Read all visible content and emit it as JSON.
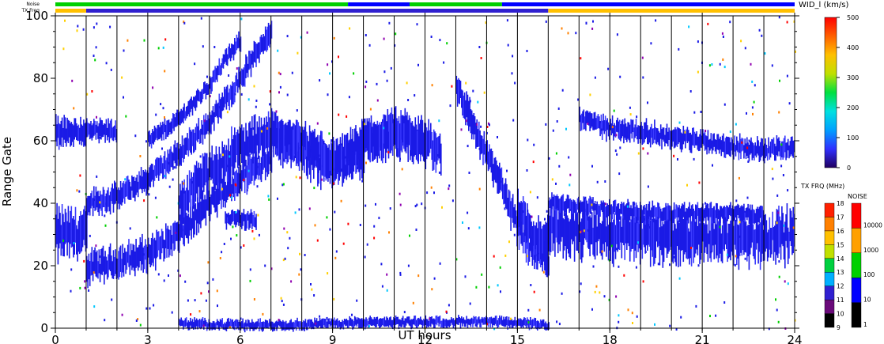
{
  "chart_data": {
    "type": "heatmap",
    "xlabel": "UT hours",
    "ylabel": "Range Gate",
    "xlim": [
      0,
      24
    ],
    "ylim": [
      0,
      100
    ],
    "x_ticks": [
      "0",
      "3",
      "6",
      "9",
      "12",
      "15",
      "18",
      "21",
      "24"
    ],
    "y_ticks": [
      "0",
      "20",
      "40",
      "60",
      "80",
      "100"
    ],
    "x_tick_values": [
      0,
      3,
      6,
      9,
      12,
      15,
      18,
      21,
      24
    ],
    "y_tick_values": [
      0,
      20,
      40,
      60,
      80,
      100
    ],
    "hour_lines": [
      1,
      2,
      3,
      4,
      5,
      6,
      7,
      8,
      9,
      10,
      11,
      12,
      13,
      14,
      15,
      16,
      17,
      18,
      19,
      20,
      21,
      22,
      23
    ],
    "top_strips": [
      {
        "label": "Noise",
        "segments": [
          {
            "from": 0,
            "to": 9.5,
            "level": "100"
          },
          {
            "from": 9.5,
            "to": 11.5,
            "level": "10"
          },
          {
            "from": 11.5,
            "to": 14.5,
            "level": "100"
          },
          {
            "from": 14.5,
            "to": 24,
            "level": "10"
          }
        ]
      },
      {
        "label": "TX Freq",
        "segments": [
          {
            "from": 0,
            "to": 1,
            "mhz": 15
          },
          {
            "from": 1,
            "to": 16,
            "mhz": 11
          },
          {
            "from": 16,
            "to": 24,
            "mhz": 15
          }
        ]
      }
    ],
    "echo_bands": [
      {
        "points": [
          [
            0,
            30
          ],
          [
            1,
            30
          ]
        ],
        "width": 14
      },
      {
        "points": [
          [
            0,
            63
          ],
          [
            1,
            63
          ]
        ],
        "width": 8
      },
      {
        "points": [
          [
            1,
            63
          ],
          [
            2,
            63
          ]
        ],
        "width": 6
      },
      {
        "points": [
          [
            1,
            19
          ],
          [
            2,
            21
          ],
          [
            3,
            24
          ],
          [
            4,
            30
          ],
          [
            5,
            40
          ],
          [
            6,
            48
          ],
          [
            7,
            55
          ]
        ],
        "width": 9
      },
      {
        "points": [
          [
            1,
            40
          ],
          [
            2,
            42
          ],
          [
            3,
            48
          ],
          [
            4,
            56
          ],
          [
            5,
            66
          ],
          [
            6,
            80
          ],
          [
            7,
            96
          ]
        ],
        "width": 7
      },
      {
        "points": [
          [
            3,
            60
          ],
          [
            4,
            67
          ],
          [
            5,
            78
          ],
          [
            5.5,
            86
          ],
          [
            6,
            92
          ]
        ],
        "width": 5
      },
      {
        "points": [
          [
            4,
            40
          ],
          [
            5,
            50
          ],
          [
            6,
            58
          ],
          [
            7,
            62
          ],
          [
            8,
            56
          ],
          [
            9,
            52
          ],
          [
            10,
            56
          ]
        ],
        "width": 12
      },
      {
        "points": [
          [
            7,
            62
          ],
          [
            8,
            60
          ],
          [
            9,
            54
          ],
          [
            10,
            60
          ],
          [
            11,
            62
          ],
          [
            12,
            58
          ]
        ],
        "width": 10
      },
      {
        "points": [
          [
            10,
            60
          ],
          [
            11,
            62
          ],
          [
            12,
            60
          ],
          [
            12.5,
            56
          ]
        ],
        "width": 12
      },
      {
        "points": [
          [
            13,
            78
          ],
          [
            13.5,
            66
          ],
          [
            14,
            55
          ],
          [
            14.5,
            45
          ],
          [
            15,
            32
          ],
          [
            15.5,
            24
          ],
          [
            16,
            22
          ]
        ],
        "width": 9
      },
      {
        "points": [
          [
            15,
            38
          ],
          [
            15.5,
            30
          ],
          [
            16,
            28
          ]
        ],
        "width": 12
      },
      {
        "points": [
          [
            16,
            33
          ],
          [
            17,
            31
          ],
          [
            18,
            30
          ],
          [
            19,
            30
          ],
          [
            20,
            29
          ],
          [
            21,
            29
          ],
          [
            22,
            29
          ],
          [
            23,
            29
          ],
          [
            24,
            30
          ]
        ],
        "width": 14
      },
      {
        "points": [
          [
            16,
            40
          ],
          [
            17,
            39
          ],
          [
            18,
            38
          ],
          [
            19,
            37
          ],
          [
            20,
            37
          ],
          [
            21,
            37
          ],
          [
            22,
            37
          ],
          [
            23,
            36
          ]
        ],
        "width": 5
      },
      {
        "points": [
          [
            17,
            67
          ],
          [
            18,
            64
          ],
          [
            19,
            63
          ],
          [
            20,
            61
          ],
          [
            21,
            60
          ],
          [
            22,
            58
          ],
          [
            23,
            57
          ],
          [
            24,
            58
          ]
        ],
        "width": 6
      },
      {
        "points": [
          [
            4,
            1.5
          ],
          [
            6,
            1
          ],
          [
            8,
            1.2
          ],
          [
            10,
            1.8
          ],
          [
            12,
            2
          ],
          [
            14,
            2
          ],
          [
            15.5,
            1.5
          ],
          [
            16,
            1
          ]
        ],
        "width": 3
      },
      {
        "points": [
          [
            5.5,
            35
          ],
          [
            6.5,
            35
          ]
        ],
        "width": 5
      }
    ],
    "velocity_scale": {
      "title": "WID_l (km/s)",
      "min": 0,
      "max": 500,
      "ticks": [
        "0",
        "100",
        "200",
        "300",
        "400",
        "500"
      ]
    },
    "frequency_scale": {
      "title": "TX FRQ (MHz)",
      "ticks": [
        "9",
        "10",
        "11",
        "12",
        "13",
        "14",
        "15",
        "16",
        "17",
        "18"
      ]
    },
    "noise_scale": {
      "title": "NOISE",
      "ticks": [
        "1",
        "10",
        "100",
        "1000",
        "10000"
      ]
    },
    "strip_labels": {
      "noise": "Noise",
      "txfreq": "TX Freq"
    }
  },
  "colors": {
    "axis": "#000000",
    "echo_main": "#1a1ae6",
    "echo_light": "#3b3bff",
    "velocity_gradient": [
      "#200060",
      "#3030ff",
      "#00a0ff",
      "#00e0e0",
      "#00e040",
      "#c0e000",
      "#ffc000",
      "#ff6000",
      "#ff0000"
    ],
    "frequency_bins": [
      "#000000",
      "#6a0a7a",
      "#3020d0",
      "#00b0ff",
      "#00d040",
      "#c0e000",
      "#ffc000",
      "#ff8000",
      "#ff2000"
    ],
    "noise_bins": [
      "#000000",
      "#0000ff",
      "#00d000",
      "#ffa000",
      "#ff0000"
    ],
    "sparse_dots": [
      "#ff0000",
      "#00d000",
      "#00c8ff",
      "#ffd000",
      "#9000b0",
      "#ff8000"
    ]
  }
}
